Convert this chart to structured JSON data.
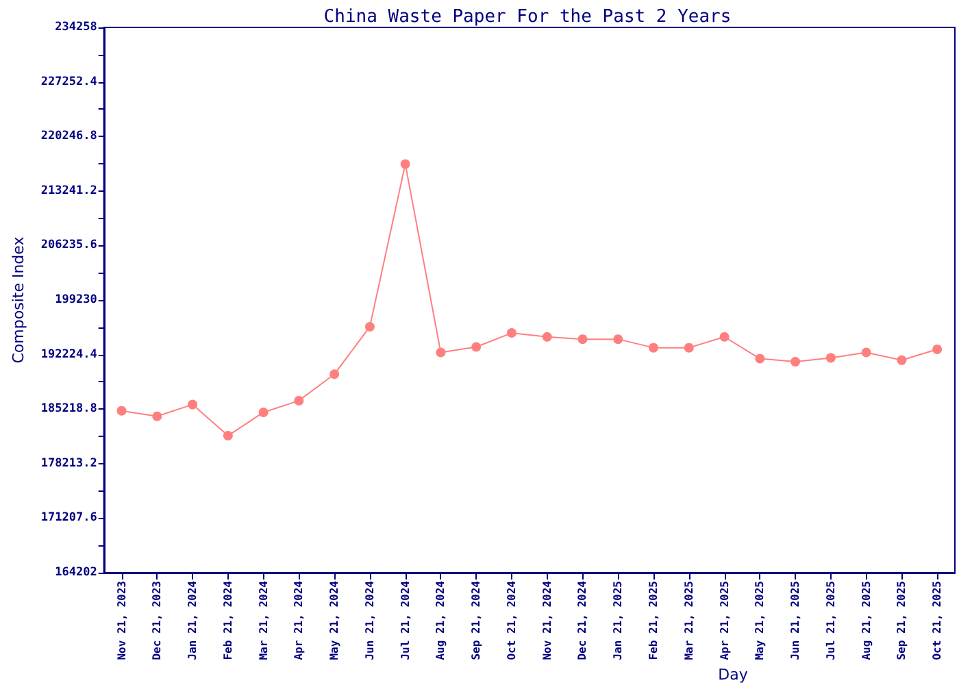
{
  "chart_data": {
    "type": "line",
    "title": "China Waste Paper For the Past 2 Years",
    "xlabel": "Day",
    "ylabel": "Composite Index",
    "categories": [
      "Nov 21, 2023",
      "Dec 21, 2023",
      "Jan 21, 2024",
      "Feb 21, 2024",
      "Mar 21, 2024",
      "Apr 21, 2024",
      "May 21, 2024",
      "Jun 21, 2024",
      "Jul 21, 2024",
      "Aug 21, 2024",
      "Sep 21, 2024",
      "Oct 21, 2024",
      "Nov 21, 2024",
      "Dec 21, 2024",
      "Jan 21, 2025",
      "Feb 21, 2025",
      "Mar 21, 2025",
      "Apr 21, 2025",
      "May 21, 2025",
      "Jun 21, 2025",
      "Jul 21, 2025",
      "Aug 21, 2025",
      "Sep 21, 2025",
      "Oct 21, 2025"
    ],
    "series": [
      {
        "color": "#ff7f7f",
        "values": [
          185000,
          184300,
          185800,
          181800,
          184800,
          186300,
          189700,
          195800,
          216700,
          192500,
          193200,
          195000,
          194500,
          194200,
          194200,
          193100,
          193100,
          194500,
          191700,
          191300,
          191800,
          192500,
          191500,
          192900
        ]
      }
    ],
    "ylim": [
      164202,
      234258
    ],
    "yticks": [
      164202,
      {
        "value": 167704.8,
        "label": null
      },
      171207.6,
      {
        "value": 174710.4,
        "label": null
      },
      178213.2,
      {
        "value": 181716,
        "label": null
      },
      185218.8,
      {
        "value": 188721.6,
        "label": null
      },
      192224.4,
      {
        "value": 195727.2,
        "label": null
      },
      199230,
      {
        "value": 202732.8,
        "label": null
      },
      206235.6,
      {
        "value": 209738.4,
        "label": null
      },
      213241.2,
      {
        "value": 216744,
        "label": null
      },
      220246.8,
      {
        "value": 223749.6,
        "label": null
      },
      227252.4,
      {
        "value": 230755.2,
        "label": null
      },
      234258
    ],
    "marker": "circle",
    "line_style": "solid"
  }
}
